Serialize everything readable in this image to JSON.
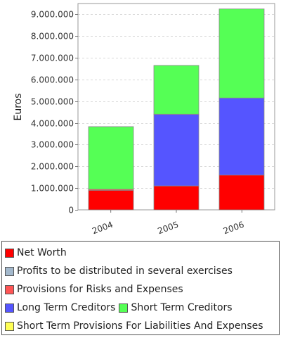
{
  "chart_data": {
    "type": "bar",
    "stacked": true,
    "categories": [
      "2004",
      "2005",
      "2006"
    ],
    "ylabel": "Euros",
    "xlabel": "",
    "ylim": [
      0,
      9500000
    ],
    "yticks": [
      0,
      1000000,
      2000000,
      3000000,
      4000000,
      5000000,
      6000000,
      7000000,
      8000000,
      9000000
    ],
    "ytick_labels": [
      "0",
      "1.000.000",
      "2.000.000",
      "3.000.000",
      "4.000.000",
      "5.000.000",
      "6.000.000",
      "7.000.000",
      "8.000.000",
      "9.000.000"
    ],
    "grid": true,
    "legend_position": "bottom",
    "series": [
      {
        "name": "Net Worth",
        "color": "#ff0000",
        "values": [
          900000,
          1100000,
          1600000
        ]
      },
      {
        "name": "Profits to be distributed in several exercises",
        "color": "#a3b8cc",
        "values": [
          0,
          0,
          0
        ]
      },
      {
        "name": "Provisions for Risks and Expenses",
        "color": "#ff5555",
        "values": [
          50000,
          0,
          0
        ]
      },
      {
        "name": "Long Term Creditors",
        "color": "#5555ff",
        "values": [
          0,
          3300000,
          3550000
        ]
      },
      {
        "name": "Short Term Creditors",
        "color": "#55ff55",
        "values": [
          2880000,
          2250000,
          4100000
        ]
      },
      {
        "name": "Short Term Provisions For Liabilities And Expenses",
        "color": "#ffff55",
        "values": [
          0,
          0,
          0
        ]
      }
    ]
  }
}
